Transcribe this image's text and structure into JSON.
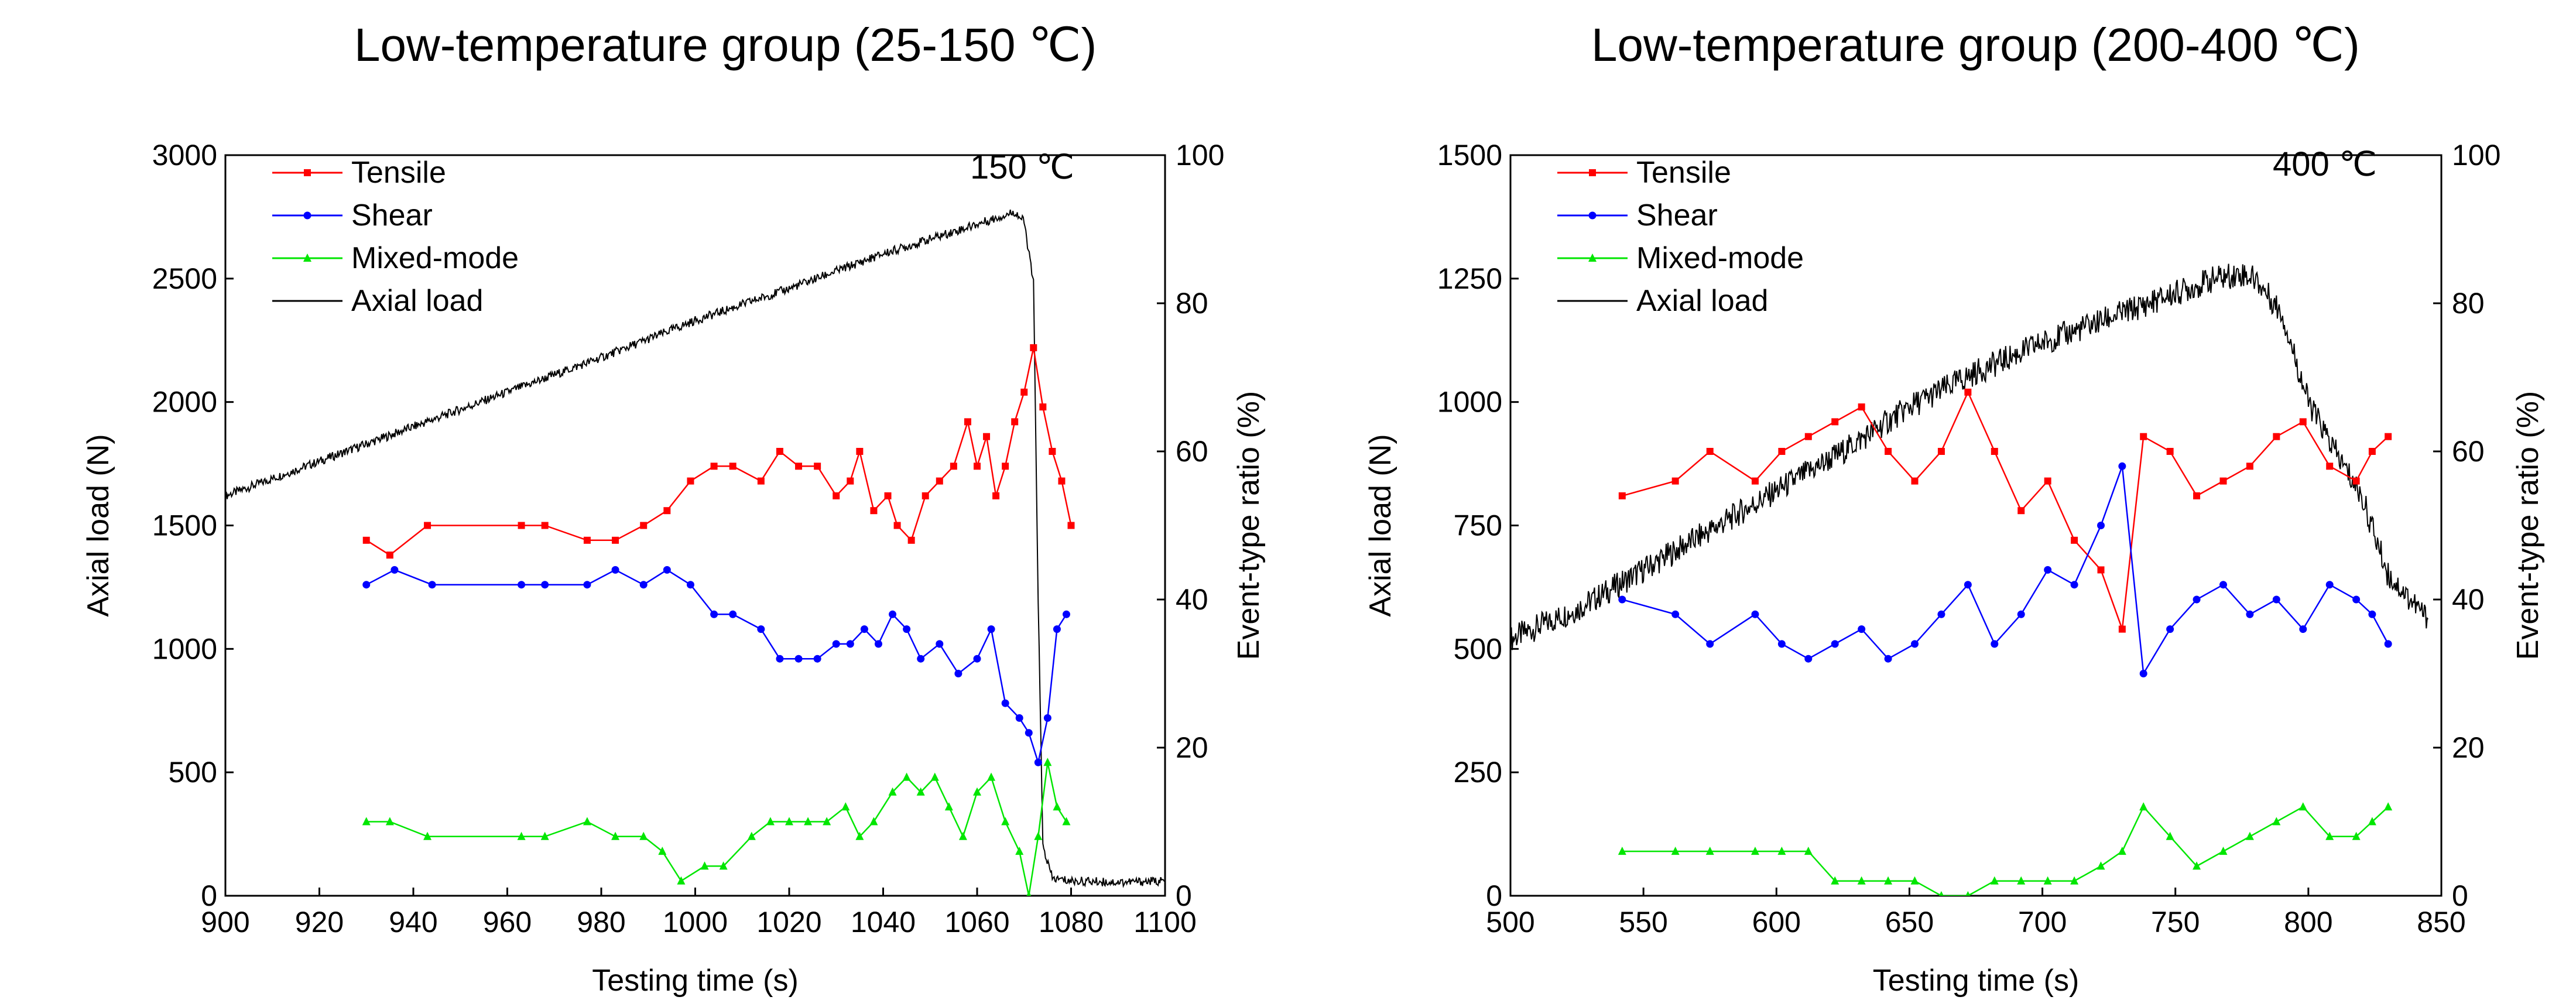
{
  "chart_data": [
    {
      "type": "line",
      "title": "Low-temperature group (25-150 ℃)",
      "annotation": "150 ℃",
      "xlabel": "Testing time (s)",
      "ylabel": "Axial load (N)",
      "y2label": "Event-type ratio (%)",
      "xlim": [
        900,
        1100
      ],
      "ylim": [
        0,
        3000
      ],
      "y2lim": [
        0,
        100
      ],
      "xticks": [
        "900",
        "920",
        "940",
        "960",
        "980",
        "1000",
        "1020",
        "1040",
        "1060",
        "1080",
        "1100"
      ],
      "yticks": [
        "0",
        "500",
        "1000",
        "1500",
        "2000",
        "2500",
        "3000"
      ],
      "y2ticks": [
        "0",
        "20",
        "40",
        "60",
        "80",
        "100"
      ],
      "legend_position": "top-left",
      "grid": false,
      "series": [
        {
          "name": "Tensile",
          "axis": "right",
          "color": "#ff0000",
          "marker": "square",
          "x": [
            930,
            935,
            943,
            963,
            968,
            977,
            983,
            989,
            994,
            999,
            1004,
            1008,
            1014,
            1018,
            1022,
            1026,
            1030,
            1033,
            1035,
            1038,
            1041,
            1043,
            1046,
            1049,
            1052,
            1055,
            1058,
            1060,
            1062,
            1064,
            1066,
            1068,
            1070,
            1072,
            1074,
            1076,
            1078,
            1080
          ],
          "y": [
            48,
            46,
            50,
            50,
            50,
            48,
            48,
            50,
            52,
            56,
            58,
            58,
            56,
            60,
            58,
            58,
            54,
            56,
            60,
            52,
            54,
            50,
            48,
            54,
            56,
            58,
            64,
            58,
            62,
            54,
            58,
            64,
            68,
            74,
            66,
            60,
            56,
            50
          ]
        },
        {
          "name": "Shear",
          "axis": "right",
          "color": "#0000ff",
          "marker": "circle",
          "x": [
            930,
            936,
            944,
            963,
            968,
            977,
            983,
            989,
            994,
            999,
            1004,
            1008,
            1014,
            1018,
            1022,
            1026,
            1030,
            1033,
            1036,
            1039,
            1042,
            1045,
            1048,
            1052,
            1056,
            1060,
            1063,
            1066,
            1069,
            1071,
            1073,
            1075,
            1077,
            1079
          ],
          "y": [
            42,
            44,
            42,
            42,
            42,
            42,
            44,
            42,
            44,
            42,
            38,
            38,
            36,
            32,
            32,
            32,
            34,
            34,
            36,
            34,
            38,
            36,
            32,
            34,
            30,
            32,
            36,
            26,
            24,
            22,
            18,
            24,
            36,
            38
          ]
        },
        {
          "name": "Mixed-mode",
          "axis": "right",
          "color": "#00e600",
          "marker": "triangle",
          "x": [
            930,
            935,
            943,
            963,
            968,
            977,
            983,
            989,
            993,
            997,
            1002,
            1006,
            1012,
            1016,
            1020,
            1024,
            1028,
            1032,
            1035,
            1038,
            1042,
            1045,
            1048,
            1051,
            1054,
            1057,
            1060,
            1063,
            1066,
            1069,
            1071,
            1073,
            1075,
            1077,
            1079
          ],
          "y": [
            10,
            10,
            8,
            8,
            8,
            10,
            8,
            8,
            6,
            2,
            4,
            4,
            8,
            10,
            10,
            10,
            10,
            12,
            8,
            10,
            14,
            16,
            14,
            16,
            12,
            8,
            14,
            16,
            10,
            6,
            0,
            8,
            18,
            12,
            10
          ]
        },
        {
          "name": "Axial load",
          "axis": "left",
          "color": "#000000",
          "marker": "none",
          "x": [
            900,
            920,
            940,
            960,
            980,
            1000,
            1020,
            1040,
            1060,
            1068,
            1070,
            1072,
            1073,
            1074,
            1076,
            1080,
            1090,
            1100
          ],
          "y": [
            1620,
            1760,
            1900,
            2040,
            2180,
            2330,
            2460,
            2600,
            2720,
            2770,
            2730,
            2480,
            1200,
            200,
            70,
            60,
            55,
            60
          ]
        }
      ]
    },
    {
      "type": "line",
      "title": "Low-temperature group (200-400 ℃)",
      "annotation": "400 ℃",
      "xlabel": "Testing time (s)",
      "ylabel": "Axial load (N)",
      "y2label": "Event-type ratio (%)",
      "xlim": [
        500,
        850
      ],
      "ylim": [
        0,
        1500
      ],
      "y2lim": [
        0,
        100
      ],
      "xticks": [
        "500",
        "550",
        "600",
        "650",
        "700",
        "750",
        "800",
        "850"
      ],
      "yticks": [
        "0",
        "250",
        "500",
        "750",
        "1000",
        "1250",
        "1500"
      ],
      "y2ticks": [
        "0",
        "20",
        "40",
        "60",
        "80",
        "100"
      ],
      "legend_position": "top-left",
      "grid": false,
      "series": [
        {
          "name": "Tensile",
          "axis": "right",
          "color": "#ff0000",
          "marker": "square",
          "x": [
            542,
            562,
            575,
            592,
            602,
            612,
            622,
            632,
            642,
            652,
            662,
            672,
            682,
            692,
            702,
            712,
            722,
            730,
            738,
            748,
            758,
            768,
            778,
            788,
            798,
            808,
            818,
            824,
            830
          ],
          "y": [
            54,
            56,
            60,
            56,
            60,
            62,
            64,
            66,
            60,
            56,
            60,
            68,
            60,
            52,
            56,
            48,
            44,
            36,
            62,
            60,
            54,
            56,
            58,
            62,
            64,
            58,
            56,
            60,
            62
          ]
        },
        {
          "name": "Shear",
          "axis": "right",
          "color": "#0000ff",
          "marker": "circle",
          "x": [
            542,
            562,
            575,
            592,
            602,
            612,
            622,
            632,
            642,
            652,
            662,
            672,
            682,
            692,
            702,
            712,
            722,
            730,
            738,
            748,
            758,
            768,
            778,
            788,
            798,
            808,
            818,
            824,
            830
          ],
          "y": [
            40,
            38,
            34,
            38,
            34,
            32,
            34,
            36,
            32,
            34,
            38,
            42,
            34,
            38,
            44,
            42,
            50,
            58,
            30,
            36,
            40,
            42,
            38,
            40,
            36,
            42,
            40,
            38,
            34
          ]
        },
        {
          "name": "Mixed-mode",
          "axis": "right",
          "color": "#00e600",
          "marker": "triangle",
          "x": [
            542,
            562,
            575,
            592,
            602,
            612,
            622,
            632,
            642,
            652,
            662,
            672,
            682,
            692,
            702,
            712,
            722,
            730,
            738,
            748,
            758,
            768,
            778,
            788,
            798,
            808,
            818,
            824,
            830
          ],
          "y": [
            6,
            6,
            6,
            6,
            6,
            6,
            2,
            2,
            2,
            2,
            0,
            0,
            2,
            2,
            2,
            2,
            4,
            6,
            12,
            8,
            4,
            6,
            8,
            10,
            12,
            8,
            8,
            10,
            12
          ]
        },
        {
          "name": "Axial load",
          "axis": "left",
          "color": "#000000",
          "marker": "none",
          "x": [
            500,
            525,
            550,
            575,
            600,
            625,
            650,
            675,
            700,
            725,
            750,
            765,
            775,
            780,
            790,
            800,
            810,
            820,
            830,
            840,
            845
          ],
          "y": [
            520,
            580,
            660,
            740,
            820,
            900,
            990,
            1060,
            1120,
            1170,
            1220,
            1250,
            1260,
            1250,
            1180,
            1000,
            900,
            810,
            650,
            590,
            560
          ]
        }
      ]
    }
  ]
}
